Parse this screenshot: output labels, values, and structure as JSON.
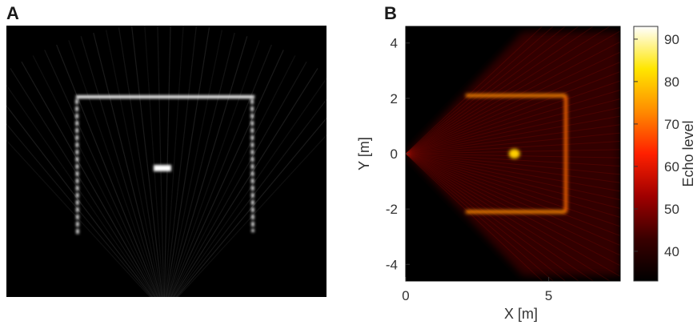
{
  "figure": {
    "panel_a": {
      "letter": "A"
    },
    "panel_b": {
      "letter": "B",
      "xlabel": "X [m]",
      "ylabel": "Y [m]",
      "colorbar_label": "Echo level"
    }
  },
  "chart_data": [
    {
      "type": "heatmap",
      "panel": "A",
      "title": "",
      "xlabel": "",
      "ylabel": "",
      "colormap": "grayscale",
      "background": "#000000"
    },
    {
      "type": "heatmap",
      "panel": "B",
      "title": "",
      "xlabel": "X [m]",
      "ylabel": "Y [m]",
      "xlim": [
        0,
        7.5
      ],
      "ylim": [
        -4.6,
        4.6
      ],
      "xticks": [
        0,
        5
      ],
      "yticks": [
        4,
        2,
        0,
        -2,
        -4
      ],
      "colorbar": {
        "label": "Echo level",
        "range": [
          33,
          93
        ],
        "ticks": [
          90,
          80,
          70,
          60,
          50,
          40
        ],
        "colors": [
          "#000000",
          "#3a0000",
          "#a00000",
          "#ff2000",
          "#ff8c00",
          "#ffe600",
          "#ffffff"
        ]
      },
      "features": {
        "wall_top_y": 2.1,
        "wall_bottom_y": -2.1,
        "wall_right_x": 5.6,
        "wall_start_x": 2.1,
        "object_x": 3.8,
        "object_y": 0
      }
    }
  ]
}
